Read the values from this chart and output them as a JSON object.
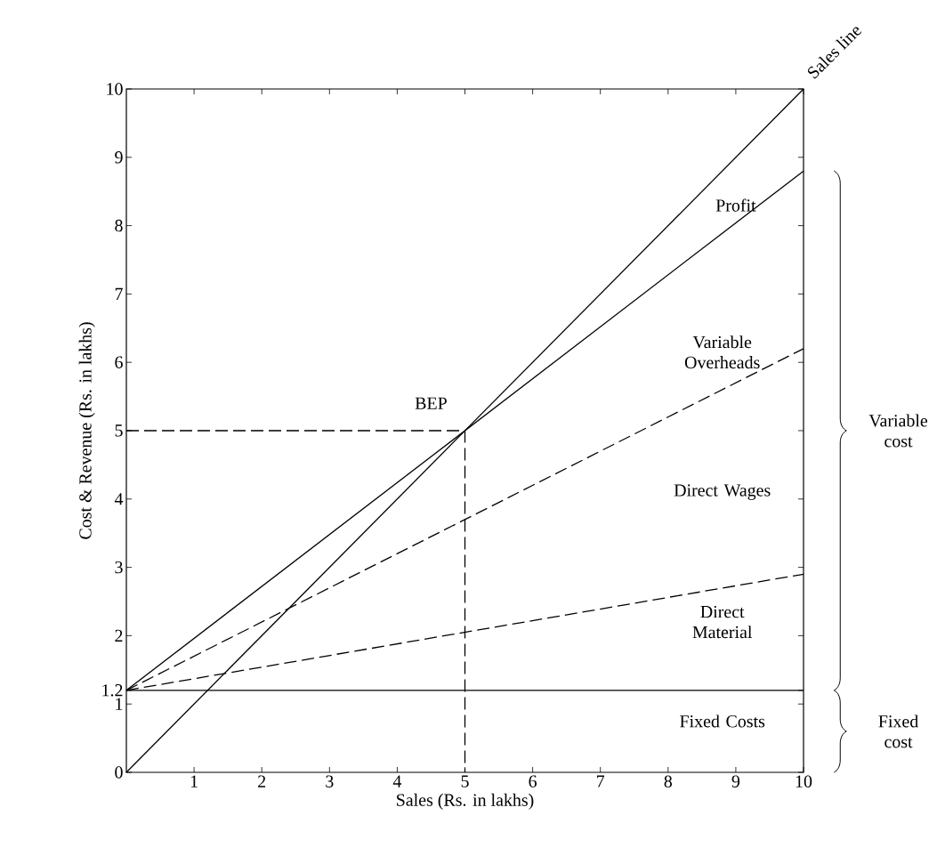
{
  "chart_data": {
    "type": "line",
    "xlabel": "Sales (Rs. in lakhs)",
    "ylabel": "Cost & Revenue (Rs. in lakhs)",
    "xlim": [
      0,
      10
    ],
    "ylim": [
      0,
      10
    ],
    "xticks": [
      1,
      2,
      3,
      4,
      5,
      6,
      7,
      8,
      9,
      10
    ],
    "yticks": [
      0,
      1,
      1.2,
      2,
      3,
      4,
      5,
      6,
      7,
      8,
      9,
      10
    ],
    "grid": false,
    "series": [
      {
        "color": "#000000",
        "line_style": "solid",
        "x": [
          0,
          10
        ],
        "values": [
          0,
          10
        ]
      },
      {
        "color": "#000000",
        "line_style": "solid",
        "x": [
          0,
          10
        ],
        "values": [
          1.2,
          8.8
        ]
      },
      {
        "color": "#000000",
        "line_style": "dashed",
        "x": [
          0,
          10
        ],
        "values": [
          1.2,
          6.2
        ]
      },
      {
        "color": "#000000",
        "line_style": "dashed",
        "x": [
          0,
          10
        ],
        "values": [
          1.2,
          2.9
        ]
      },
      {
        "color": "#000000",
        "line_style": "solid",
        "x": [
          0,
          10
        ],
        "values": [
          1.2,
          1.2
        ]
      },
      {
        "color": "#000000",
        "line_style": "dashed",
        "x": [
          0,
          5,
          5
        ],
        "values": [
          5,
          5,
          0
        ]
      }
    ],
    "annotations": [
      "Sales line",
      "Profit",
      "BEP",
      "Variable Overheads",
      "Direct Wages",
      "Direct Material",
      "Fixed Costs",
      "Variable cost",
      "Fixed cost"
    ]
  }
}
